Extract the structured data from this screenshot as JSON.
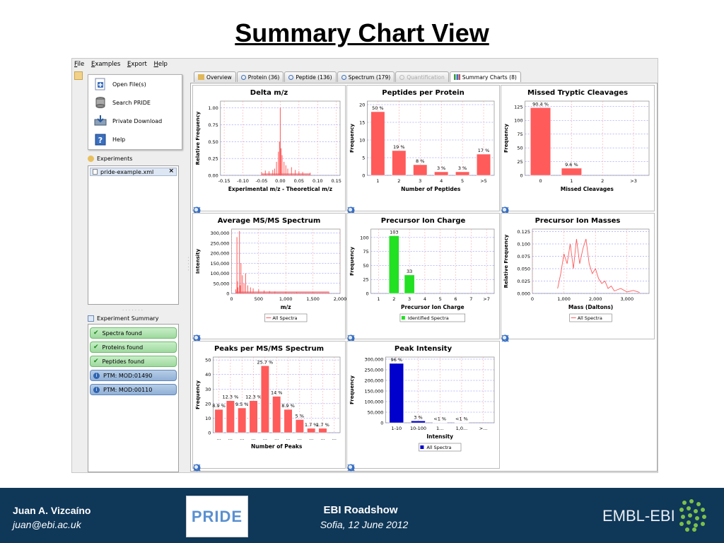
{
  "slide_title": "Summary Chart View",
  "menu": [
    "File",
    "Examples",
    "Export",
    "Help"
  ],
  "launch": [
    {
      "label": "Open File(s)",
      "icon": "open-file-icon"
    },
    {
      "label": "Search PRIDE",
      "icon": "database-icon"
    },
    {
      "label": "Private Download",
      "icon": "download-icon"
    },
    {
      "label": "Help",
      "icon": "help-book-icon"
    }
  ],
  "experiments_label": "Experiments",
  "experiment_file": "pride-example.xml",
  "summary_label": "Experiment Summary",
  "summary_items": [
    {
      "label": "Spectra found",
      "kind": "ok"
    },
    {
      "label": "Proteins found",
      "kind": "ok"
    },
    {
      "label": "Peptides found",
      "kind": "ok"
    },
    {
      "label": "PTM: MOD:01490",
      "kind": "info"
    },
    {
      "label": "PTM: MOD:00110",
      "kind": "info"
    }
  ],
  "tabs": [
    {
      "label": "Overview",
      "state": "normal"
    },
    {
      "label": "Protein (36)",
      "state": "normal"
    },
    {
      "label": "Peptide (136)",
      "state": "normal"
    },
    {
      "label": "Spectrum (179)",
      "state": "normal"
    },
    {
      "label": "Quantification",
      "state": "disabled"
    },
    {
      "label": "Summary Charts (8)",
      "state": "active"
    }
  ],
  "colors": {
    "red": "#ff5b5b",
    "green": "#22e022",
    "blue": "#0000cc",
    "footer": "#0f3758"
  },
  "chart_data": [
    {
      "id": "delta",
      "title": "Delta m/z",
      "type": "line",
      "xlabel": "Experimental m/z - Theoretical m/z",
      "ylabel": "Relative Frequency",
      "xticks": [
        "-0.15",
        "-0.10",
        "-0.05",
        "0.00",
        "0.05",
        "0.10",
        "0.15"
      ],
      "yticks": [
        "0.00",
        "0.25",
        "0.50",
        "0.75",
        "1.00"
      ],
      "xlim": [
        -0.16,
        0.16
      ],
      "ylim": [
        0,
        1.1
      ],
      "x": [
        -0.05,
        -0.04,
        -0.03,
        -0.02,
        -0.015,
        -0.01,
        -0.005,
        -0.002,
        0,
        0.002,
        0.005,
        0.01,
        0.015,
        0.02,
        0.03,
        0.04,
        0.05,
        0.06,
        0.08
      ],
      "y": [
        0.05,
        0.07,
        0.06,
        0.08,
        0.1,
        0.2,
        0.35,
        0.5,
        1.0,
        0.4,
        0.3,
        0.2,
        0.15,
        0.1,
        0.12,
        0.08,
        0.06,
        0.05,
        0.04
      ],
      "legend": ""
    },
    {
      "id": "ppp",
      "title": "Peptides per Protein",
      "type": "bar",
      "xlabel": "Number of Peptides",
      "ylabel": "Frequency",
      "categories": [
        "1",
        "2",
        "3",
        "4",
        "5",
        ">5"
      ],
      "values": [
        18,
        7,
        3,
        1,
        1,
        6
      ],
      "labels": [
        "50 %",
        "19 %",
        "8 %",
        "3 %",
        "3 %",
        "17 %"
      ],
      "yticks": [
        "0",
        "5",
        "10",
        "15",
        "20"
      ],
      "ylim": [
        0,
        21
      ],
      "legend": ""
    },
    {
      "id": "mtc",
      "title": "Missed Tryptic Cleavages",
      "type": "bar",
      "xlabel": "Missed Cleavages",
      "ylabel": "Frequency",
      "categories": [
        "0",
        "1",
        "2",
        ">3"
      ],
      "values": [
        123,
        13,
        0,
        0
      ],
      "labels": [
        "90.4 %",
        "9.6 %",
        "",
        ""
      ],
      "yticks": [
        "0",
        "25",
        "50",
        "75",
        "100",
        "125"
      ],
      "ylim": [
        0,
        135
      ],
      "legend": ""
    },
    {
      "id": "avg",
      "title": "Average MS/MS Spectrum",
      "type": "line",
      "xlabel": "m/z",
      "ylabel": "Intensity",
      "xticks": [
        "0",
        "500",
        "1,000",
        "1,500",
        "2,000"
      ],
      "yticks": [
        "0",
        "50,000",
        "100,000",
        "150,000",
        "200,000",
        "250,000",
        "300,000"
      ],
      "xlim": [
        0,
        2000
      ],
      "ylim": [
        0,
        320000
      ],
      "x": [
        80,
        100,
        110,
        120,
        147,
        160,
        175,
        200,
        230,
        260,
        300,
        350,
        400,
        500,
        600,
        700,
        800,
        1000,
        1200,
        1500,
        1800
      ],
      "y": [
        20000,
        280000,
        60000,
        30000,
        310000,
        40000,
        150000,
        90000,
        50000,
        100000,
        40000,
        30000,
        25000,
        20000,
        15000,
        12000,
        10000,
        8000,
        6000,
        4000,
        3000
      ],
      "legend": "All Spectra"
    },
    {
      "id": "charge",
      "title": "Precursor Ion Charge",
      "type": "bar",
      "xlabel": "Precursor Ion Charge",
      "ylabel": "Frequency",
      "categories": [
        "1",
        "2",
        "3",
        "4",
        "5",
        "6",
        "7",
        ">7"
      ],
      "values": [
        0,
        103,
        33,
        0,
        0,
        0,
        0,
        0
      ],
      "labels": [
        "",
        "103",
        "33",
        "",
        "",
        "",
        "",
        ""
      ],
      "yticks": [
        "0",
        "25",
        "50",
        "75",
        "100"
      ],
      "ylim": [
        0,
        115
      ],
      "legend": "Identified Spectra"
    },
    {
      "id": "mass",
      "title": "Precursor Ion Masses",
      "type": "line",
      "xlabel": "Mass (Daltons)",
      "ylabel": "Relative Frequency",
      "xticks": [
        "0",
        "1,000",
        "2,000",
        "3,000"
      ],
      "yticks": [
        "0.000",
        "0.025",
        "0.050",
        "0.075",
        "0.100",
        "0.125"
      ],
      "xlim": [
        0,
        3700
      ],
      "ylim": [
        0,
        0.13
      ],
      "x": [
        800,
        900,
        1000,
        1100,
        1200,
        1300,
        1400,
        1500,
        1600,
        1700,
        1800,
        1900,
        2000,
        2100,
        2200,
        2300,
        2400,
        2500,
        2600,
        2800,
        3000,
        3200,
        3400
      ],
      "y": [
        0.01,
        0.04,
        0.08,
        0.06,
        0.1,
        0.05,
        0.11,
        0.06,
        0.09,
        0.11,
        0.06,
        0.04,
        0.05,
        0.03,
        0.02,
        0.025,
        0.01,
        0.015,
        0.005,
        0.01,
        0.003,
        0.006,
        0.002
      ],
      "legend": "All Spectra"
    },
    {
      "id": "peaks",
      "title": "Peaks per MS/MS Spectrum",
      "type": "bar",
      "xlabel": "Number of Peaks",
      "ylabel": "Frequency",
      "categories": [
        "...",
        "...",
        "...",
        "...",
        "...",
        "...",
        "...",
        "...",
        "...",
        "...",
        "..."
      ],
      "values": [
        16,
        22,
        17,
        22,
        46,
        25,
        16,
        9,
        3,
        3,
        0
      ],
      "labels": [
        "8.9 %",
        "12.3 %",
        "9.5 %",
        "12.3 %",
        "25.7 %",
        "14 %",
        "8.9 %",
        "5 %",
        "1.7 %",
        "1.7 %",
        ""
      ],
      "yticks": [
        "0",
        "10",
        "20",
        "30",
        "40",
        "50"
      ],
      "ylim": [
        0,
        52
      ],
      "legend": ""
    },
    {
      "id": "intensity",
      "title": "Peak Intensity",
      "type": "bar",
      "xlabel": "Intensity",
      "ylabel": "Frequency",
      "categories": [
        "1-10",
        "10-100",
        "1...",
        "1,0...",
        ">..."
      ],
      "values": [
        280000,
        9000,
        1500,
        1500,
        0
      ],
      "labels": [
        "96 %",
        "3 %",
        "<1 %",
        "<1 %",
        ""
      ],
      "yticks": [
        "0",
        "50,000",
        "100,000",
        "150,000",
        "200,000",
        "250,000",
        "300,000"
      ],
      "ylim": [
        0,
        310000
      ],
      "legend": "All Spectra"
    }
  ],
  "footer": {
    "name": "Juan A. Vizcaíno",
    "email": "juan@ebi.ac.uk",
    "event": "EBI Roadshow",
    "date": "Sofia, 12 June 2012",
    "pride_logo": "PRIDE",
    "embl": "EMBL-EBI"
  }
}
